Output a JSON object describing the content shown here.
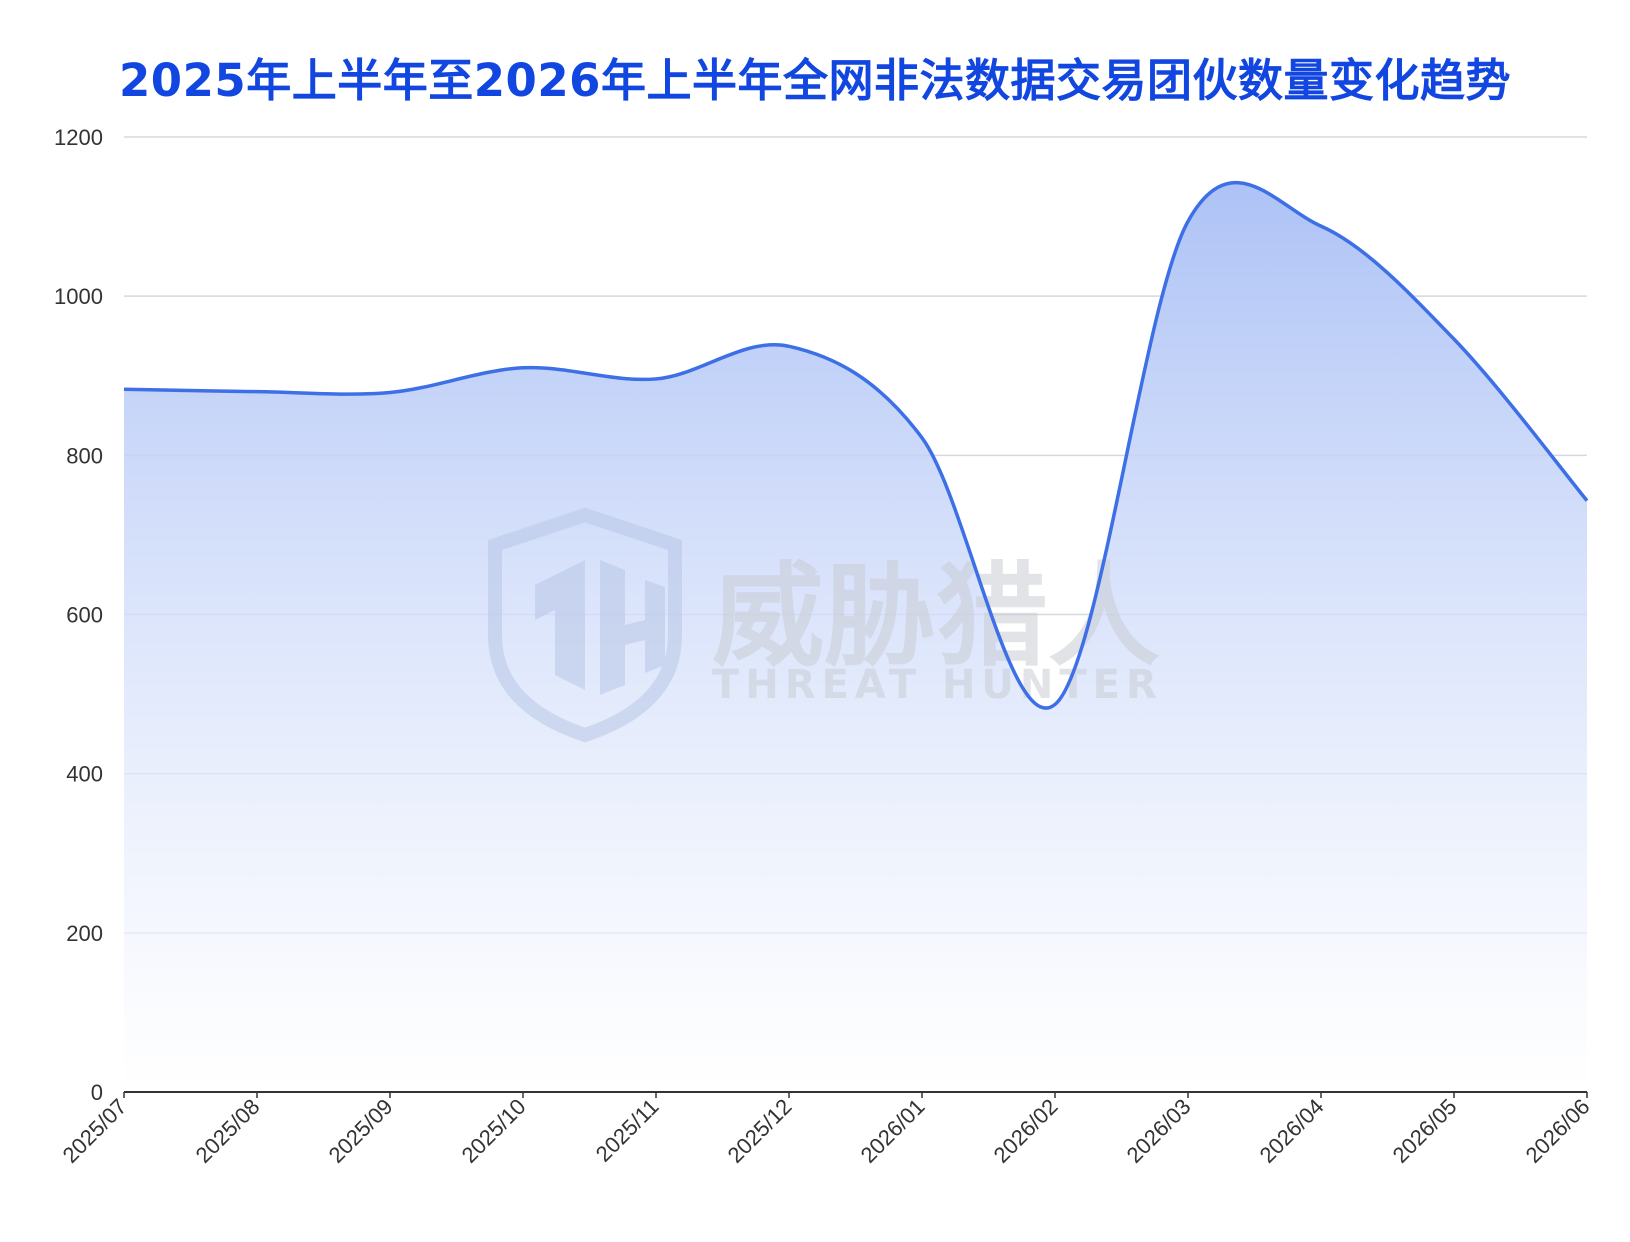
{
  "chart_data": {
    "type": "area",
    "title": "2025年上半年至2026年上半年全网非法数据交易团伙数量变化趋势",
    "xlabel": "",
    "ylabel": "",
    "categories": [
      "2025/07",
      "2025/08",
      "2025/09",
      "2025/10",
      "2025/11",
      "2025/12",
      "2026/01",
      "2026/02",
      "2026/03",
      "2026/04",
      "2026/05",
      "2026/06"
    ],
    "values": [
      883,
      880,
      879,
      910,
      896,
      937,
      822,
      487,
      1094,
      1088,
      946,
      743
    ],
    "ylim": [
      0,
      1200
    ],
    "yticks": [
      0,
      200,
      400,
      600,
      800,
      1000,
      1200
    ],
    "grid": true,
    "colors": {
      "line": "#3d6fe6",
      "fill_top": "#a9bff5",
      "fill_bottom": "#ffffff",
      "title": "#1246e0"
    }
  },
  "watermark": {
    "name": "威胁猎人",
    "subtitle": "THREAT HUNTER",
    "logo_icon": "shield-th-logo-icon"
  }
}
